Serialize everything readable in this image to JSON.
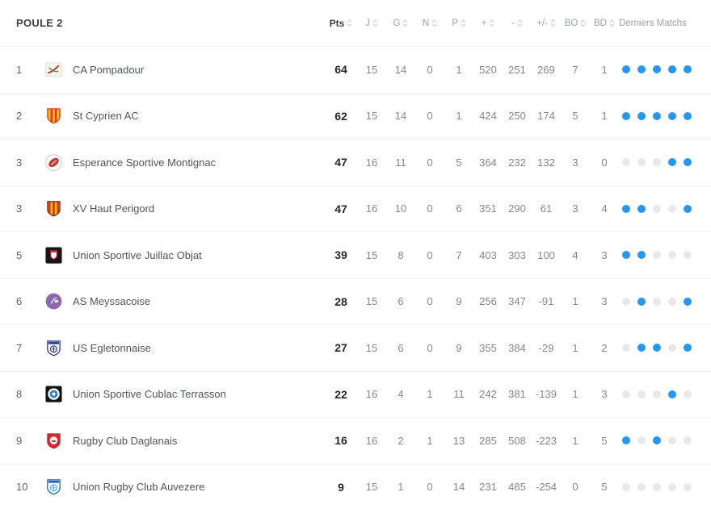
{
  "colors": {
    "win_dot": "#2597f3",
    "empty_dot": "#e8e8ea",
    "accent_blue": "#2597f3"
  },
  "table": {
    "title": "POULE 2",
    "columns": [
      {
        "key": "pts",
        "label": "Pts",
        "sortable": true,
        "emphasis": true
      },
      {
        "key": "j",
        "label": "J",
        "sortable": true
      },
      {
        "key": "g",
        "label": "G",
        "sortable": true
      },
      {
        "key": "n",
        "label": "N",
        "sortable": true
      },
      {
        "key": "p",
        "label": "P",
        "sortable": true
      },
      {
        "key": "points-for",
        "label": "+",
        "sortable": true
      },
      {
        "key": "points-against",
        "label": "-",
        "sortable": true
      },
      {
        "key": "diff",
        "label": "+/-",
        "sortable": true
      },
      {
        "key": "bo",
        "label": "BO",
        "sortable": true
      },
      {
        "key": "bd",
        "label": "BD",
        "sortable": true
      },
      {
        "key": "derniers-matchs",
        "label": "Derniers Matchs",
        "sortable": false
      }
    ],
    "rows": [
      {
        "rank": "1",
        "team": "CA Pompadour",
        "logo": {
          "style": "scribble",
          "colors": [
            "#f6f4f0",
            "#c73a2f",
            "#55853f"
          ]
        },
        "stats": [
          "64",
          "15",
          "14",
          "0",
          "1",
          "520",
          "251",
          "269",
          "7",
          "1"
        ],
        "last_matches": [
          1,
          1,
          1,
          1,
          1
        ]
      },
      {
        "rank": "2",
        "team": "St Cyprien AC",
        "logo": {
          "style": "shield-stripes",
          "colors": [
            "#e6392b",
            "#f6c40e",
            "#e6392b"
          ]
        },
        "stats": [
          "62",
          "15",
          "14",
          "0",
          "1",
          "424",
          "250",
          "174",
          "5",
          "1"
        ],
        "last_matches": [
          1,
          1,
          1,
          1,
          1
        ]
      },
      {
        "rank": "3",
        "team": "Esperance Sportive Montignac",
        "logo": {
          "style": "ball-circle",
          "colors": [
            "#ffffff",
            "#c13a31",
            "#c5c9cf"
          ]
        },
        "stats": [
          "47",
          "16",
          "11",
          "0",
          "5",
          "364",
          "232",
          "132",
          "3",
          "0"
        ],
        "last_matches": [
          0,
          0,
          0,
          1,
          1
        ]
      },
      {
        "rank": "3",
        "team": "XV Haut Perigord",
        "logo": {
          "style": "shield-stripes",
          "colors": [
            "#f2b411",
            "#cf3a26",
            "#7a241b"
          ]
        },
        "stats": [
          "47",
          "16",
          "10",
          "0",
          "6",
          "351",
          "290",
          "61",
          "3",
          "4"
        ],
        "last_matches": [
          1,
          1,
          0,
          0,
          1
        ]
      },
      {
        "rank": "5",
        "team": "Union Sportive Juillac Objat",
        "logo": {
          "style": "square-shield",
          "colors": [
            "#161616",
            "#ffffff",
            "#c0272d"
          ]
        },
        "stats": [
          "39",
          "15",
          "8",
          "0",
          "7",
          "403",
          "303",
          "100",
          "4",
          "3"
        ],
        "last_matches": [
          1,
          1,
          0,
          0,
          0
        ]
      },
      {
        "rank": "6",
        "team": "AS Meyssacoise",
        "logo": {
          "style": "solid-circle",
          "colors": [
            "#8c68b3",
            "#ffffff",
            "#a98fc9"
          ]
        },
        "stats": [
          "28",
          "15",
          "6",
          "0",
          "9",
          "256",
          "347",
          "-91",
          "1",
          "3"
        ],
        "last_matches": [
          0,
          1,
          0,
          0,
          1
        ]
      },
      {
        "rank": "7",
        "team": "US Egletonnaise",
        "logo": {
          "style": "shield-emblem",
          "colors": [
            "#ffffff",
            "#2d3f8c",
            "#2d3f8c"
          ]
        },
        "stats": [
          "27",
          "15",
          "6",
          "0",
          "9",
          "355",
          "384",
          "-29",
          "1",
          "2"
        ],
        "last_matches": [
          0,
          1,
          1,
          0,
          1
        ]
      },
      {
        "rank": "8",
        "team": "Union Sportive Cublac Terrasson",
        "logo": {
          "style": "square-circle",
          "colors": [
            "#121212",
            "#3b82c4",
            "#ffffff"
          ]
        },
        "stats": [
          "22",
          "16",
          "4",
          "1",
          "11",
          "242",
          "381",
          "-139",
          "1",
          "3"
        ],
        "last_matches": [
          0,
          0,
          0,
          1,
          0
        ]
      },
      {
        "rank": "9",
        "team": "Rugby Club Daglanais",
        "logo": {
          "style": "red-shield",
          "colors": [
            "#d8262c",
            "#ffffff",
            "#a91d22"
          ]
        },
        "stats": [
          "16",
          "16",
          "2",
          "1",
          "13",
          "285",
          "508",
          "-223",
          "1",
          "5"
        ],
        "last_matches": [
          1,
          0,
          1,
          0,
          0
        ]
      },
      {
        "rank": "10",
        "team": "Union Rugby Club Auvezere",
        "logo": {
          "style": "shield-emblem",
          "colors": [
            "#ffffff",
            "#2b66ab",
            "#59b0dc"
          ]
        },
        "stats": [
          "9",
          "15",
          "1",
          "0",
          "14",
          "231",
          "485",
          "-254",
          "0",
          "5"
        ],
        "last_matches": [
          0,
          0,
          0,
          0,
          0
        ]
      }
    ]
  }
}
